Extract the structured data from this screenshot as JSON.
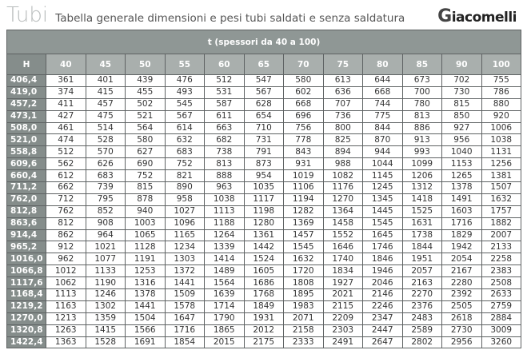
{
  "header": {
    "title": "Tubi",
    "subtitle": "Tabella generale dimensioni e pesi tubi saldati e senza saldatura",
    "logo": "Giacomelli"
  },
  "table": {
    "band": "t (spessori da 40 a 100)",
    "row_header_label": "H",
    "columns": [
      "40",
      "45",
      "50",
      "55",
      "60",
      "65",
      "70",
      "75",
      "80",
      "85",
      "90",
      "100"
    ],
    "rows": [
      {
        "h": "406,4",
        "v": [
          "361",
          "401",
          "439",
          "476",
          "512",
          "547",
          "580",
          "613",
          "644",
          "673",
          "702",
          "755"
        ]
      },
      {
        "h": "419,0",
        "v": [
          "374",
          "415",
          "455",
          "493",
          "531",
          "567",
          "602",
          "636",
          "668",
          "700",
          "730",
          "786"
        ]
      },
      {
        "h": "457,2",
        "v": [
          "411",
          "457",
          "502",
          "545",
          "587",
          "628",
          "668",
          "707",
          "744",
          "780",
          "815",
          "880"
        ]
      },
      {
        "h": "473,1",
        "v": [
          "427",
          "475",
          "521",
          "567",
          "611",
          "654",
          "696",
          "736",
          "775",
          "813",
          "850",
          "920"
        ]
      },
      {
        "h": "508,0",
        "v": [
          "461",
          "514",
          "564",
          "614",
          "663",
          "710",
          "756",
          "800",
          "844",
          "886",
          "927",
          "1006"
        ]
      },
      {
        "h": "521,0",
        "v": [
          "474",
          "528",
          "580",
          "632",
          "682",
          "731",
          "778",
          "825",
          "870",
          "913",
          "956",
          "1038"
        ]
      },
      {
        "h": "558,8",
        "v": [
          "512",
          "570",
          "627",
          "683",
          "738",
          "791",
          "843",
          "894",
          "944",
          "993",
          "1040",
          "1131"
        ]
      },
      {
        "h": "609,6",
        "v": [
          "562",
          "626",
          "690",
          "752",
          "813",
          "873",
          "931",
          "988",
          "1044",
          "1099",
          "1153",
          "1256"
        ]
      },
      {
        "h": "660,4",
        "v": [
          "612",
          "683",
          "752",
          "821",
          "888",
          "954",
          "1019",
          "1082",
          "1145",
          "1206",
          "1265",
          "1381"
        ]
      },
      {
        "h": "711,2",
        "v": [
          "662",
          "739",
          "815",
          "890",
          "963",
          "1035",
          "1106",
          "1176",
          "1245",
          "1312",
          "1378",
          "1507"
        ]
      },
      {
        "h": "762,0",
        "v": [
          "712",
          "795",
          "878",
          "958",
          "1038",
          "1117",
          "1194",
          "1270",
          "1345",
          "1418",
          "1491",
          "1632"
        ]
      },
      {
        "h": "812,8",
        "v": [
          "762",
          "852",
          "940",
          "1027",
          "1113",
          "1198",
          "1282",
          "1364",
          "1445",
          "1525",
          "1603",
          "1757"
        ]
      },
      {
        "h": "863,6",
        "v": [
          "812",
          "908",
          "1003",
          "1096",
          "1188",
          "1280",
          "1369",
          "1458",
          "1545",
          "1631",
          "1716",
          "1882"
        ]
      },
      {
        "h": "914,4",
        "v": [
          "862",
          "964",
          "1065",
          "1165",
          "1264",
          "1361",
          "1457",
          "1552",
          "1645",
          "1738",
          "1829",
          "2007"
        ]
      },
      {
        "h": "965,2",
        "v": [
          "912",
          "1021",
          "1128",
          "1234",
          "1339",
          "1442",
          "1545",
          "1646",
          "1746",
          "1844",
          "1942",
          "2133"
        ]
      },
      {
        "h": "1016,0",
        "v": [
          "962",
          "1077",
          "1191",
          "1303",
          "1414",
          "1524",
          "1632",
          "1740",
          "1846",
          "1951",
          "2054",
          "2258"
        ]
      },
      {
        "h": "1066,8",
        "v": [
          "1012",
          "1133",
          "1253",
          "1372",
          "1489",
          "1605",
          "1720",
          "1834",
          "1946",
          "2057",
          "2167",
          "2383"
        ]
      },
      {
        "h": "1117,6",
        "v": [
          "1062",
          "1190",
          "1316",
          "1441",
          "1564",
          "1686",
          "1808",
          "1927",
          "2046",
          "2163",
          "2280",
          "2508"
        ]
      },
      {
        "h": "1168,4",
        "v": [
          "1113",
          "1246",
          "1378",
          "1509",
          "1639",
          "1768",
          "1895",
          "2021",
          "2146",
          "2270",
          "2392",
          "2633"
        ]
      },
      {
        "h": "1219,2",
        "v": [
          "1163",
          "1302",
          "1441",
          "1578",
          "1714",
          "1849",
          "1983",
          "2115",
          "2246",
          "2376",
          "2505",
          "2759"
        ]
      },
      {
        "h": "1270,0",
        "v": [
          "1213",
          "1359",
          "1504",
          "1647",
          "1790",
          "1931",
          "2071",
          "2209",
          "2347",
          "2483",
          "2618",
          "2884"
        ]
      },
      {
        "h": "1320,8",
        "v": [
          "1263",
          "1415",
          "1566",
          "1716",
          "1865",
          "2012",
          "2158",
          "2303",
          "2447",
          "2589",
          "2730",
          "3009"
        ]
      },
      {
        "h": "1422,4",
        "v": [
          "1363",
          "1528",
          "1691",
          "1854",
          "2015",
          "2175",
          "2333",
          "2491",
          "2647",
          "2802",
          "2956",
          "3260"
        ]
      }
    ]
  }
}
